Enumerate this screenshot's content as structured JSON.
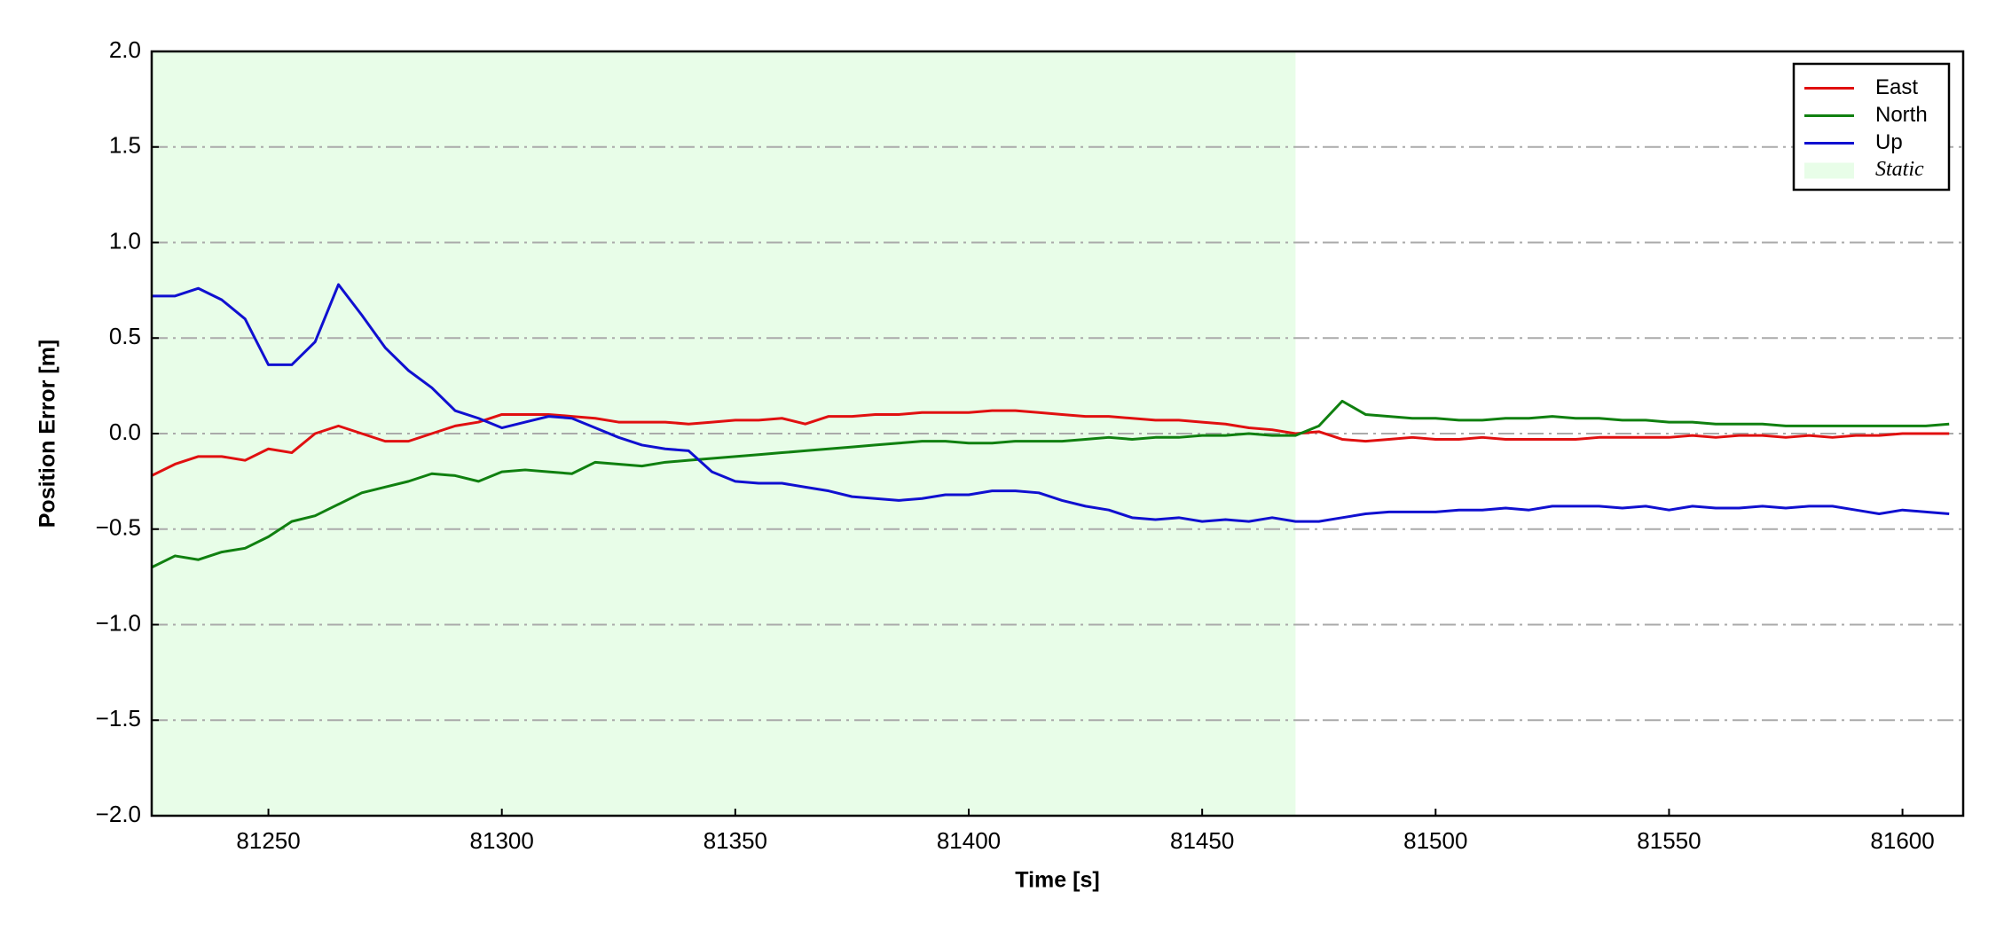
{
  "chart_data": {
    "type": "line",
    "x_label": "Time [s]",
    "y_label": "Position Error [m]",
    "xlim": [
      81225,
      81613
    ],
    "ylim": [
      -2,
      2
    ],
    "xticks": [
      81250,
      81300,
      81350,
      81400,
      81450,
      81500,
      81550,
      81600
    ],
    "yticks": [
      {
        "value": -2,
        "label": "−2.0"
      },
      {
        "value": -1.5,
        "label": "−1.5"
      },
      {
        "value": -1,
        "label": "−1.0"
      },
      {
        "value": -0.5,
        "label": "−0.5"
      },
      {
        "value": 0,
        "label": "0.0"
      },
      {
        "value": 0.5,
        "label": "0.5"
      },
      {
        "value": 1,
        "label": "1.0"
      },
      {
        "value": 1.5,
        "label": "1.5"
      },
      {
        "value": 2,
        "label": "2.0"
      }
    ],
    "grid": "y",
    "legend": "upper right",
    "shaded_region": {
      "name": "Static",
      "x": [
        81225,
        81470
      ],
      "color": "#e8fde8"
    },
    "x": [
      81225,
      81230,
      81235,
      81240,
      81245,
      81250,
      81255,
      81260,
      81265,
      81270,
      81275,
      81280,
      81285,
      81290,
      81295,
      81300,
      81305,
      81310,
      81315,
      81320,
      81325,
      81330,
      81335,
      81340,
      81345,
      81350,
      81355,
      81360,
      81365,
      81370,
      81375,
      81380,
      81385,
      81390,
      81395,
      81400,
      81405,
      81410,
      81415,
      81420,
      81425,
      81430,
      81435,
      81440,
      81445,
      81450,
      81455,
      81460,
      81465,
      81470,
      81475,
      81480,
      81485,
      81490,
      81495,
      81500,
      81505,
      81510,
      81515,
      81520,
      81525,
      81530,
      81535,
      81540,
      81545,
      81550,
      81555,
      81560,
      81565,
      81570,
      81575,
      81580,
      81585,
      81590,
      81595,
      81600,
      81605,
      81610
    ],
    "series": [
      {
        "name": "East",
        "color": "#e01010",
        "values": [
          -0.22,
          -0.16,
          -0.12,
          -0.12,
          -0.14,
          -0.08,
          -0.1,
          0.0,
          0.04,
          0.0,
          -0.04,
          -0.04,
          0.0,
          0.04,
          0.06,
          0.1,
          0.1,
          0.1,
          0.09,
          0.08,
          0.06,
          0.06,
          0.06,
          0.05,
          0.06,
          0.07,
          0.07,
          0.08,
          0.05,
          0.09,
          0.09,
          0.1,
          0.1,
          0.11,
          0.11,
          0.11,
          0.12,
          0.12,
          0.11,
          0.1,
          0.09,
          0.09,
          0.08,
          0.07,
          0.07,
          0.06,
          0.05,
          0.03,
          0.02,
          0.0,
          0.01,
          -0.03,
          -0.04,
          -0.03,
          -0.02,
          -0.03,
          -0.03,
          -0.02,
          -0.03,
          -0.03,
          -0.03,
          -0.03,
          -0.02,
          -0.02,
          -0.02,
          -0.02,
          -0.01,
          -0.02,
          -0.01,
          -0.01,
          -0.02,
          -0.01,
          -0.02,
          -0.01,
          -0.01,
          0.0,
          0.0,
          0.0
        ]
      },
      {
        "name": "North",
        "color": "#108010",
        "values": [
          -0.7,
          -0.64,
          -0.66,
          -0.62,
          -0.6,
          -0.54,
          -0.46,
          -0.43,
          -0.37,
          -0.31,
          -0.28,
          -0.25,
          -0.21,
          -0.22,
          -0.25,
          -0.2,
          -0.19,
          -0.2,
          -0.21,
          -0.15,
          -0.16,
          -0.17,
          -0.15,
          -0.14,
          -0.13,
          -0.12,
          -0.11,
          -0.1,
          -0.09,
          -0.08,
          -0.07,
          -0.06,
          -0.05,
          -0.04,
          -0.04,
          -0.05,
          -0.05,
          -0.04,
          -0.04,
          -0.04,
          -0.03,
          -0.02,
          -0.03,
          -0.02,
          -0.02,
          -0.01,
          -0.01,
          0.0,
          -0.01,
          -0.01,
          0.04,
          0.17,
          0.1,
          0.09,
          0.08,
          0.08,
          0.07,
          0.07,
          0.08,
          0.08,
          0.09,
          0.08,
          0.08,
          0.07,
          0.07,
          0.06,
          0.06,
          0.05,
          0.05,
          0.05,
          0.04,
          0.04,
          0.04,
          0.04,
          0.04,
          0.04,
          0.04,
          0.05
        ]
      },
      {
        "name": "Up",
        "color": "#1010d0",
        "values": [
          0.72,
          0.72,
          0.76,
          0.7,
          0.6,
          0.36,
          0.36,
          0.48,
          0.78,
          0.62,
          0.45,
          0.33,
          0.24,
          0.12,
          0.08,
          0.03,
          0.06,
          0.09,
          0.08,
          0.03,
          -0.02,
          -0.06,
          -0.08,
          -0.09,
          -0.2,
          -0.25,
          -0.26,
          -0.26,
          -0.28,
          -0.3,
          -0.33,
          -0.34,
          -0.35,
          -0.34,
          -0.32,
          -0.32,
          -0.3,
          -0.3,
          -0.31,
          -0.35,
          -0.38,
          -0.4,
          -0.44,
          -0.45,
          -0.44,
          -0.46,
          -0.45,
          -0.46,
          -0.44,
          -0.46,
          -0.46,
          -0.44,
          -0.42,
          -0.41,
          -0.41,
          -0.41,
          -0.4,
          -0.4,
          -0.39,
          -0.4,
          -0.38,
          -0.38,
          -0.38,
          -0.39,
          -0.38,
          -0.4,
          -0.38,
          -0.39,
          -0.39,
          -0.38,
          -0.39,
          -0.38,
          -0.38,
          -0.4,
          -0.42,
          -0.4,
          -0.41,
          -0.42
        ]
      }
    ]
  }
}
